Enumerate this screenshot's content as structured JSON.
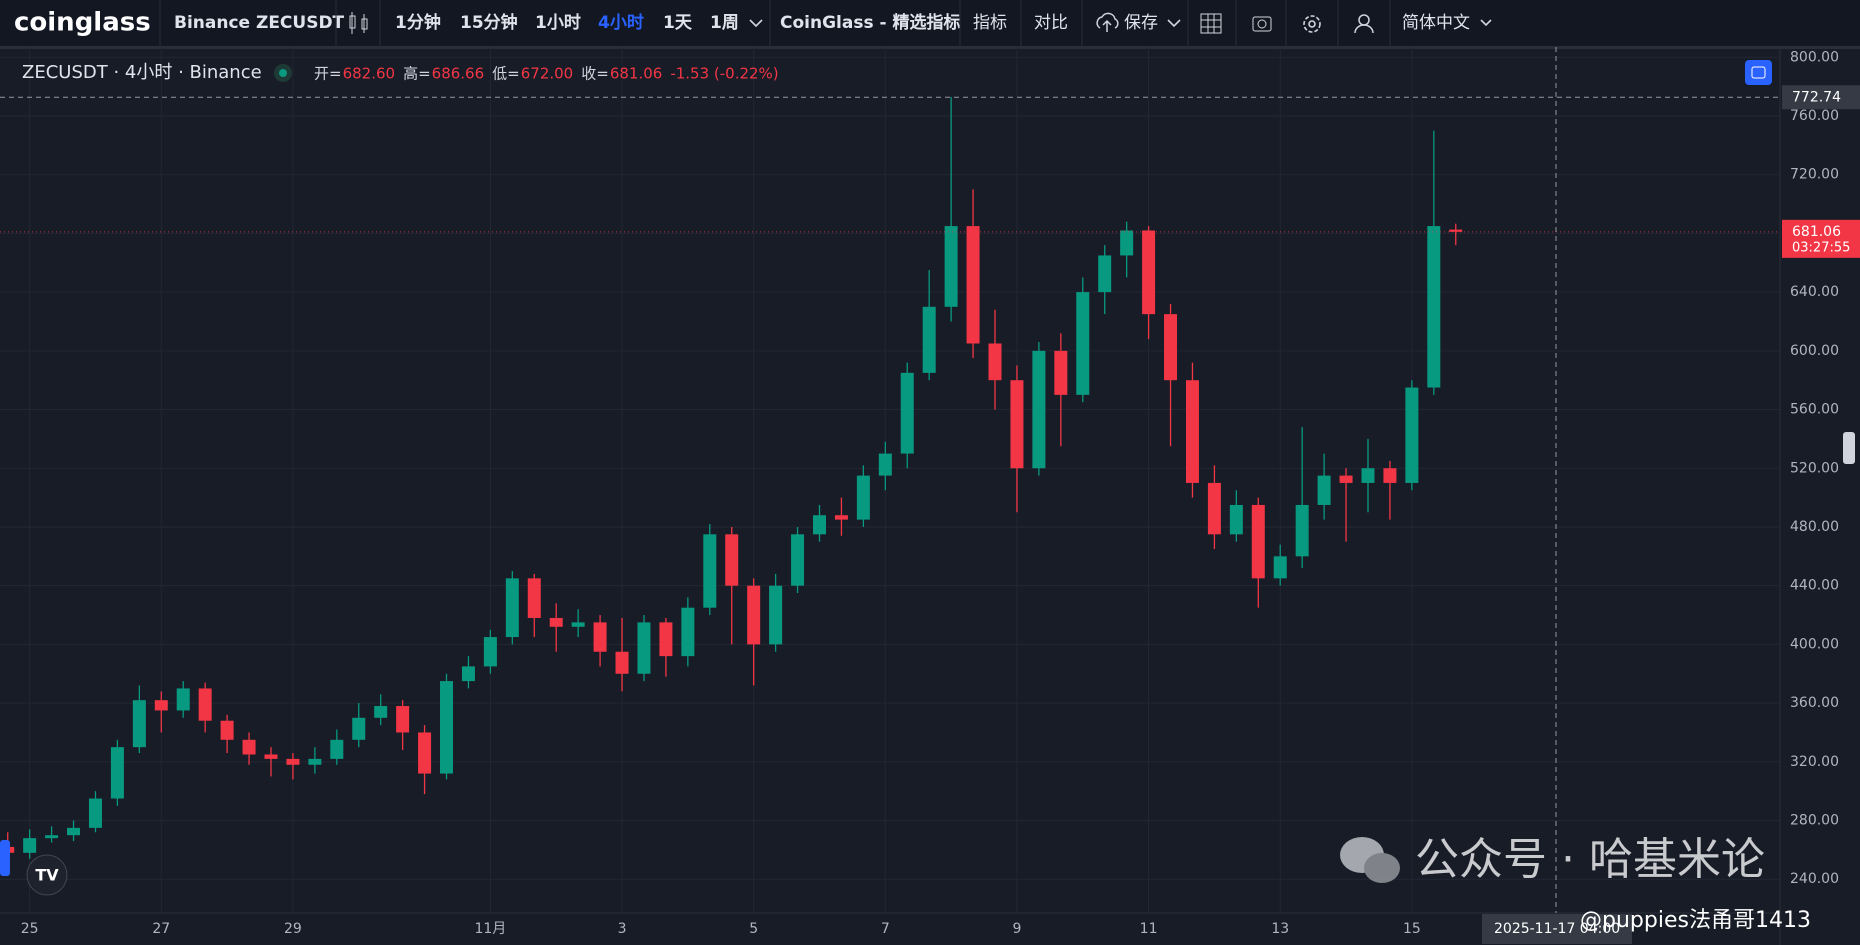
{
  "toolbar": {
    "brand": "coinglass",
    "symbol": "Binance ZECUSDT",
    "intervals": [
      "1分钟",
      "15分钟",
      "1小时",
      "4小时",
      "1天",
      "1周"
    ],
    "active_interval": 3,
    "indicator_set": "CoinGlass - 精选指标",
    "indicators": "指标",
    "compare": "对比",
    "save": "保存",
    "language": "简体中文"
  },
  "legend": {
    "symbol": "ZECUSDT · 4小时 · Binance",
    "items": [
      {
        "label": "开=",
        "value": "682.60"
      },
      {
        "label": "高=",
        "value": "686.66"
      },
      {
        "label": "低=",
        "value": "672.00"
      },
      {
        "label": "收=",
        "value": "681.06"
      }
    ],
    "change": "-1.53 (-0.22%)"
  },
  "chart_data": {
    "type": "candlestick",
    "up_color": "#089981",
    "down_color": "#f23645",
    "open": [
      262,
      258,
      268,
      270,
      275,
      295,
      330,
      362,
      355,
      370,
      348,
      335,
      325,
      322,
      318,
      322,
      335,
      350,
      358,
      340,
      312,
      375,
      385,
      405,
      445,
      418,
      412,
      415,
      395,
      380,
      415,
      392,
      425,
      475,
      440,
      400,
      440,
      475,
      488,
      485,
      515,
      530,
      585,
      630,
      685,
      605,
      580,
      520,
      600,
      570,
      640,
      665,
      682,
      625,
      580,
      510,
      475,
      495,
      445,
      460,
      495,
      515,
      510,
      520,
      510,
      575,
      682.6
    ],
    "high": [
      272,
      274,
      276,
      280,
      300,
      335,
      372,
      368,
      375,
      374,
      352,
      340,
      330,
      326,
      330,
      342,
      360,
      366,
      362,
      345,
      380,
      392,
      410,
      450,
      448,
      428,
      424,
      420,
      418,
      420,
      418,
      432,
      482,
      480,
      445,
      448,
      480,
      495,
      500,
      522,
      538,
      592,
      655,
      773,
      710,
      628,
      590,
      606,
      612,
      650,
      672,
      688,
      685,
      632,
      592,
      522,
      505,
      500,
      468,
      548,
      530,
      520,
      540,
      525,
      580,
      750,
      686.66
    ],
    "low": [
      248,
      254,
      265,
      266,
      272,
      290,
      326,
      340,
      350,
      340,
      326,
      318,
      310,
      308,
      312,
      318,
      330,
      345,
      328,
      298,
      308,
      370,
      380,
      400,
      405,
      395,
      405,
      385,
      368,
      375,
      378,
      385,
      420,
      400,
      372,
      395,
      435,
      470,
      474,
      480,
      505,
      520,
      580,
      620,
      595,
      560,
      490,
      515,
      535,
      565,
      625,
      650,
      608,
      535,
      500,
      465,
      470,
      425,
      440,
      452,
      485,
      470,
      490,
      485,
      505,
      570,
      672
    ],
    "close": [
      258,
      268,
      270,
      275,
      295,
      330,
      362,
      355,
      370,
      348,
      335,
      325,
      322,
      318,
      322,
      335,
      350,
      358,
      340,
      312,
      375,
      385,
      405,
      445,
      418,
      412,
      415,
      395,
      380,
      415,
      392,
      425,
      475,
      440,
      400,
      440,
      475,
      488,
      485,
      515,
      530,
      585,
      630,
      685,
      605,
      580,
      520,
      600,
      570,
      640,
      665,
      682,
      625,
      580,
      510,
      475,
      495,
      445,
      460,
      495,
      515,
      510,
      520,
      510,
      575,
      685,
      681.06
    ],
    "ylim": [
      217,
      807
    ],
    "yticks": [
      {
        "value": 240,
        "label": "240.00"
      },
      {
        "value": 280,
        "label": "280.00"
      },
      {
        "value": 320,
        "label": "320.00"
      },
      {
        "value": 360,
        "label": "360.00"
      },
      {
        "value": 400,
        "label": "400.00"
      },
      {
        "value": 440,
        "label": "440.00"
      },
      {
        "value": 480,
        "label": "480.00"
      },
      {
        "value": 520,
        "label": "520.00"
      },
      {
        "value": 560,
        "label": "560.00"
      },
      {
        "value": 600,
        "label": "600.00"
      },
      {
        "value": 640,
        "label": "640.00"
      },
      {
        "value": 680,
        "label": "680.00"
      },
      {
        "value": 720,
        "label": "720.00"
      },
      {
        "value": 760,
        "label": "760.00"
      },
      {
        "value": 800,
        "label": "800.00"
      }
    ],
    "xticks": [
      {
        "value": 1,
        "label": "25"
      },
      {
        "value": 7,
        "label": "27"
      },
      {
        "value": 13,
        "label": "29"
      },
      {
        "value": 22,
        "label": "11月"
      },
      {
        "value": 28,
        "label": "3"
      },
      {
        "value": 34,
        "label": "5"
      },
      {
        "value": 40,
        "label": "7"
      },
      {
        "value": 46,
        "label": "9"
      },
      {
        "value": 52,
        "label": "11"
      },
      {
        "value": 58,
        "label": "13"
      },
      {
        "value": 64,
        "label": "15"
      }
    ],
    "grid": true,
    "crosshair": {
      "price": 772.74,
      "time": "2025-11-17 04:00"
    },
    "last_price": {
      "value": 681.06,
      "countdown": "03:27:55"
    }
  },
  "watermark": {
    "account": "公众号 · 哈基米论",
    "author": "@puppies法甬哥1413"
  }
}
